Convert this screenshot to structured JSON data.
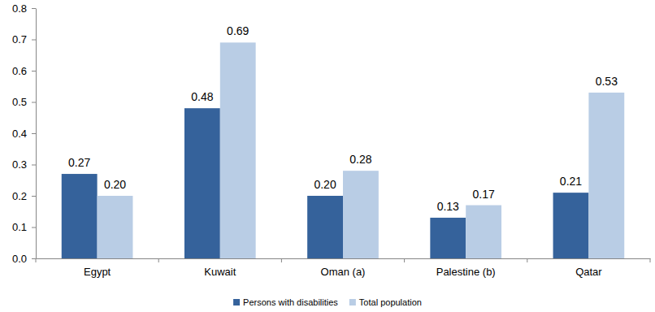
{
  "chart_data": {
    "type": "bar",
    "categories": [
      "Egypt",
      "Kuwait",
      "Oman (a)",
      "Palestine (b)",
      "Qatar"
    ],
    "series": [
      {
        "name": "Persons with disabilities",
        "color": "#35629b",
        "values": [
          0.27,
          0.48,
          0.2,
          0.13,
          0.21
        ],
        "value_labels": [
          "0.27",
          "0.48",
          "0.20",
          "0.13",
          "0.21"
        ]
      },
      {
        "name": "Total population",
        "color": "#b9cde5",
        "values": [
          0.2,
          0.69,
          0.28,
          0.17,
          0.53
        ],
        "value_labels": [
          "0.20",
          "0.69",
          "0.28",
          "0.17",
          "0.53"
        ]
      }
    ],
    "ylim": [
      0,
      0.8
    ],
    "yticks": [
      {
        "value": 0,
        "label": "0.0"
      },
      0.1,
      0.2,
      0.3,
      0.4,
      0.5,
      0.6,
      0.7,
      0.8
    ],
    "grid": false,
    "legend": "bottom",
    "data_labels": true
  }
}
